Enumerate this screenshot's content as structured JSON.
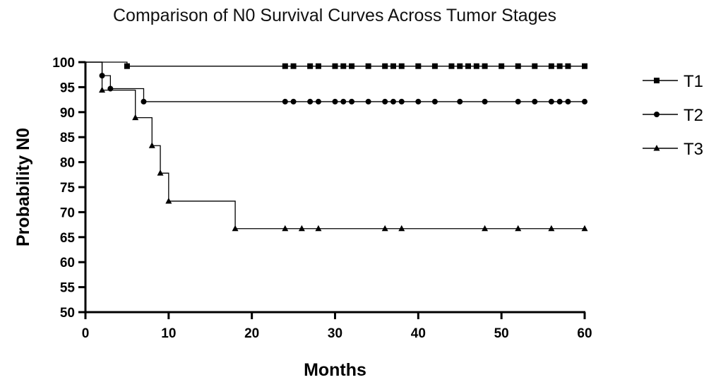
{
  "chart_data": {
    "type": "line",
    "step": true,
    "title": "Comparison of N0 Survival Curves Across Tumor Stages",
    "xlabel": "Months",
    "ylabel": "Probability N0",
    "xlim": [
      0,
      60
    ],
    "ylim": [
      50,
      100
    ],
    "xticks": [
      0,
      10,
      20,
      30,
      40,
      50,
      60
    ],
    "yticks": [
      50,
      55,
      60,
      65,
      70,
      75,
      80,
      85,
      90,
      95,
      100
    ],
    "grid": false,
    "legend_position": "right",
    "series": [
      {
        "name": "T1",
        "marker": "square",
        "x": [
          0,
          5,
          60
        ],
        "y": [
          100,
          99.2,
          99.2
        ],
        "markers_x": [
          5,
          24,
          25,
          27,
          28,
          30,
          31,
          32,
          34,
          36,
          37,
          38,
          40,
          42,
          44,
          45,
          46,
          47,
          48,
          50,
          52,
          54,
          56,
          57,
          58,
          60
        ],
        "markers_y": 99.2
      },
      {
        "name": "T2",
        "marker": "circle",
        "x": [
          0,
          2,
          3,
          7,
          60
        ],
        "y": [
          100,
          97.3,
          94.7,
          92.1,
          92.1
        ],
        "markers_x": [
          2,
          3,
          7,
          24,
          25,
          27,
          28,
          30,
          31,
          32,
          34,
          36,
          37,
          38,
          40,
          42,
          45,
          48,
          52,
          54,
          56,
          57,
          58,
          60
        ],
        "markers_y": "y"
      },
      {
        "name": "T3",
        "marker": "triangle",
        "x": [
          0,
          2,
          6,
          8,
          9,
          10,
          18,
          60
        ],
        "y": [
          100,
          94.4,
          88.9,
          83.3,
          77.8,
          72.2,
          66.7,
          66.7
        ],
        "markers_x": [
          2,
          6,
          8,
          9,
          10,
          18,
          24,
          26,
          28,
          36,
          38,
          48,
          52,
          56,
          60
        ],
        "markers_y": "y"
      }
    ]
  }
}
